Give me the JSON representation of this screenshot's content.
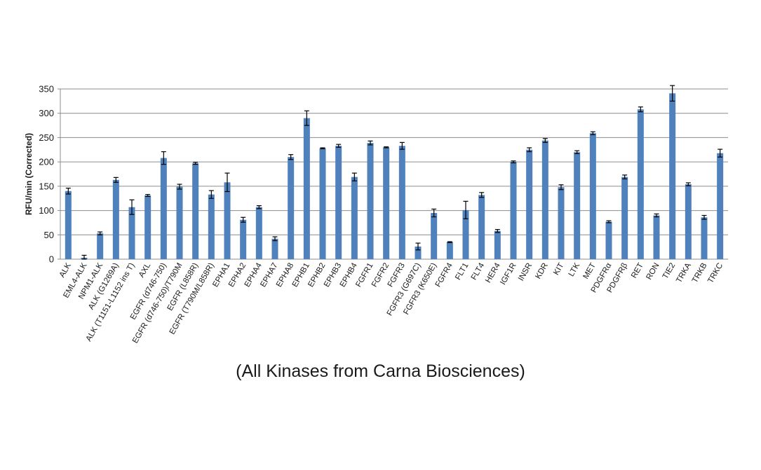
{
  "caption": "(All Kinases from Carna Biosciences)",
  "chart_data": {
    "type": "bar",
    "title": "",
    "xlabel": "",
    "ylabel": "RFU/min (Corrected)",
    "ylim": [
      0,
      350
    ],
    "yticks": [
      0,
      50,
      100,
      150,
      200,
      250,
      300,
      350
    ],
    "grid": true,
    "legend": "none",
    "bar_color": "#4f81bd",
    "categories": [
      "ALK",
      "EML4-ALK",
      "NPM1-ALK",
      "ALK (G1269A)",
      "ALK (T1151-L1152 ins T)",
      "AXL",
      "EGFR (d746-750)",
      "EGFR (d746-750)/T790M",
      "EGFR (L858R)",
      "EGFR (T790M/L858R)",
      "EPHA1",
      "EPHA2",
      "EPHA4",
      "EPHA7",
      "EPHA8",
      "EPHB1",
      "EPHB2",
      "EPHB3",
      "EPHB4",
      "FGFR1",
      "FGFR2",
      "FGFR3",
      "FGFR3 (G697C)",
      "FGFR3 (K650E)",
      "FGFR4",
      "FLT1",
      "FLT4",
      "HER4",
      "IGF1R",
      "INSR",
      "KDR",
      "KIT",
      "LTK",
      "MET",
      "PDGFRα",
      "PDGFRβ",
      "RET",
      "RON",
      "TIE2",
      "TRKA",
      "TRKB",
      "TRKC"
    ],
    "values": [
      140,
      3,
      53,
      163,
      107,
      131,
      208,
      149,
      197,
      133,
      158,
      81,
      107,
      42,
      210,
      290,
      228,
      233,
      169,
      239,
      230,
      233,
      26,
      95,
      35,
      101,
      132,
      58,
      200,
      225,
      244,
      148,
      220,
      259,
      77,
      169,
      308,
      90,
      341,
      154,
      86,
      218
    ],
    "errors": [
      6,
      5,
      3,
      5,
      15,
      2,
      13,
      5,
      2,
      8,
      19,
      5,
      3,
      4,
      5,
      15,
      1,
      3,
      8,
      4,
      1,
      7,
      7,
      8,
      1,
      18,
      5,
      3,
      2,
      4,
      4,
      5,
      3,
      3,
      2,
      4,
      5,
      3,
      16,
      3,
      4,
      8
    ]
  }
}
